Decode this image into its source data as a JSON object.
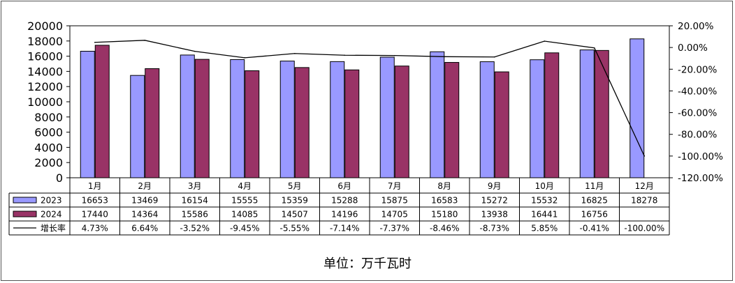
{
  "chart_data": {
    "type": "bar",
    "categories": [
      "1月",
      "2月",
      "3月",
      "4月",
      "5月",
      "6月",
      "7月",
      "8月",
      "9月",
      "10月",
      "11月",
      "12月"
    ],
    "series": [
      {
        "name": "2023",
        "type": "bar",
        "color": "#9999ff",
        "values": [
          16653,
          13469,
          16154,
          15555,
          15359,
          15288,
          15875,
          16583,
          15272,
          15532,
          16825,
          18278
        ],
        "labels": [
          "16653",
          "13469",
          "16154",
          "15555",
          "15359",
          "15288",
          "15875",
          "16583",
          "15272",
          "15532",
          "16825",
          "18278"
        ]
      },
      {
        "name": "2024",
        "type": "bar",
        "color": "#993366",
        "values": [
          17440,
          14364,
          15586,
          14085,
          14507,
          14196,
          14705,
          15180,
          13938,
          16441,
          16756,
          null
        ],
        "labels": [
          "17440",
          "14364",
          "15586",
          "14085",
          "14507",
          "14196",
          "14705",
          "15180",
          "13938",
          "16441",
          "16756",
          ""
        ]
      },
      {
        "name": "增长率",
        "type": "line",
        "axis": "right",
        "color": "#000000",
        "values": [
          4.73,
          6.64,
          -3.52,
          -9.45,
          -5.55,
          -7.14,
          -7.37,
          -8.46,
          -8.73,
          5.85,
          -0.41,
          -100.0
        ],
        "labels": [
          "4.73%",
          "6.64%",
          "-3.52%",
          "-9.45%",
          "-5.55%",
          "-7.14%",
          "-7.37%",
          "-8.46%",
          "-8.73%",
          "5.85%",
          "-0.41%",
          "-100.00%"
        ]
      }
    ],
    "y_left": {
      "min": 0,
      "max": 20000,
      "ticks": [
        "0",
        "2000",
        "4000",
        "6000",
        "8000",
        "10000",
        "12000",
        "14000",
        "16000",
        "18000",
        "20000"
      ]
    },
    "y_right": {
      "min": -120,
      "max": 20,
      "ticks": [
        "-120.00%",
        "-100.00%",
        "-80.00%",
        "-60.00%",
        "-40.00%",
        "-20.00%",
        "0.00%",
        "20.00%"
      ]
    },
    "grid": false,
    "legend": "data-table"
  },
  "footer": {
    "unit_label": "单位：万千瓦时"
  }
}
